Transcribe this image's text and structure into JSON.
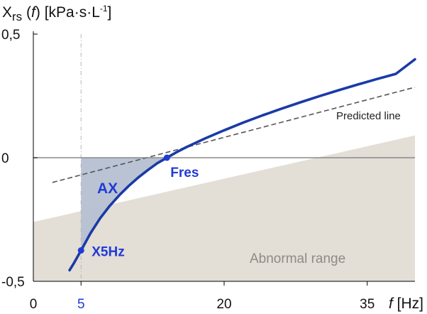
{
  "chart_data": {
    "type": "line",
    "ylabel": {
      "main": "X",
      "sub": "rs",
      "func_open": "(",
      "func_var": "f",
      "func_close": ")",
      "unit_open": "[kPa·s·L",
      "unit_sup": "-1",
      "unit_close": "]"
    },
    "xlabel": {
      "var": "f",
      "unit": "[Hz]"
    },
    "xlim": [
      0,
      40
    ],
    "ylim": [
      -0.5,
      0.5
    ],
    "x_ticks": [
      {
        "value": 0,
        "label": "0"
      },
      {
        "value": 5,
        "label": "5",
        "color": "#1f3bd6"
      },
      {
        "value": 20,
        "label": "20"
      },
      {
        "value": 35,
        "label": "35"
      }
    ],
    "y_ticks": [
      {
        "value": 0.5,
        "label": "0,5"
      },
      {
        "value": 0,
        "label": "0"
      },
      {
        "value": -0.5,
        "label": "-0,5"
      }
    ],
    "series": [
      {
        "key": "measured",
        "color": "#1a3aa6",
        "x": [
          3.8,
          4.2,
          5.0,
          6.0,
          7.0,
          8.0,
          9.0,
          10.0,
          11.0,
          12.0,
          13.0,
          14.0,
          15.0,
          16.0,
          18.0,
          20.0,
          22.0,
          24.0,
          26.0,
          28.0,
          30.0,
          32.0,
          34.0,
          36.0,
          38.0,
          40.0
        ],
        "y": [
          -0.455,
          -0.43,
          -0.375,
          -0.305,
          -0.245,
          -0.195,
          -0.152,
          -0.114,
          -0.08,
          -0.05,
          -0.022,
          0.0,
          0.022,
          0.042,
          0.078,
          0.111,
          0.142,
          0.171,
          0.198,
          0.224,
          0.249,
          0.273,
          0.296,
          0.318,
          0.339,
          0.398
        ]
      },
      {
        "name": "Predicted line",
        "key": "predicted",
        "color": "#555555",
        "dashed": true,
        "x": [
          2,
          40
        ],
        "y": [
          -0.1,
          0.285
        ]
      }
    ],
    "abnormal_range": {
      "label": "Abnormal range",
      "color": "#e3ded6",
      "upper_boundary": {
        "x": [
          0,
          40
        ],
        "y": [
          -0.26,
          0.09
        ]
      }
    },
    "ax_area": {
      "label": "AX",
      "color": "#b5c0d2",
      "x_from": 5,
      "x_to": 14
    },
    "points": [
      {
        "label": "X5Hz",
        "x": 5.0,
        "y": -0.375,
        "color": "#1f3bd6"
      },
      {
        "label": "Fres",
        "x": 14.0,
        "y": 0.0,
        "color": "#1f3bd6"
      }
    ],
    "zero_line": true,
    "vertical_guide_x": 5
  }
}
